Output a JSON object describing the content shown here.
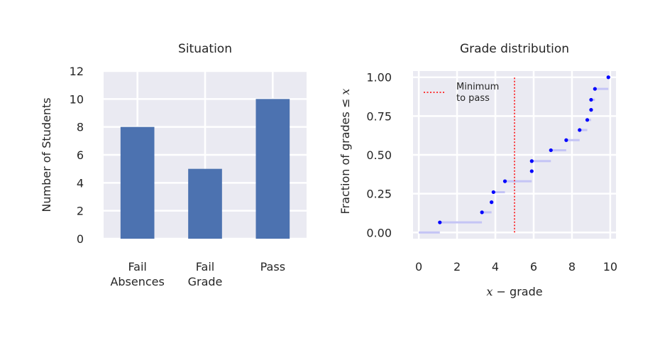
{
  "chart_data": [
    {
      "type": "bar",
      "title": "Situation",
      "ylabel": "Number of Students",
      "xlabel": "",
      "categories": [
        [
          "Fail",
          "Absences"
        ],
        [
          "Fail",
          "Grade"
        ],
        [
          "Pass"
        ]
      ],
      "values": [
        8,
        5,
        10
      ],
      "ylim": [
        0,
        12
      ],
      "yticks": [
        0,
        2,
        4,
        6,
        8,
        10,
        12
      ],
      "grid": true,
      "bar_color": "#4c72b0",
      "background": "#eaeaf2"
    },
    {
      "type": "line",
      "subtype": "step-ecdf",
      "title": "Grade distribution",
      "xlabel_var": "x",
      "xlabel_text": " − grade",
      "ylabel_text": "Fraction of grades ≤ ",
      "ylabel_var": "x",
      "xlim": [
        -0.3,
        10.3
      ],
      "ylim": [
        -0.04,
        1.04
      ],
      "xticks": [
        0,
        2,
        4,
        6,
        8,
        10
      ],
      "yticks": [
        "0.00",
        "0.25",
        "0.50",
        "0.75",
        "1.00"
      ],
      "ytick_values": [
        0,
        0.25,
        0.5,
        0.75,
        1.0
      ],
      "grid": true,
      "background": "#eaeaf2",
      "step_color": "#c4c4f5",
      "point_color": "#0000ff",
      "threshold_color": "#ff0000",
      "points": [
        {
          "x": 1.1,
          "y": 0.065
        },
        {
          "x": 3.3,
          "y": 0.13
        },
        {
          "x": 3.8,
          "y": 0.195
        },
        {
          "x": 3.9,
          "y": 0.26
        },
        {
          "x": 4.5,
          "y": 0.33
        },
        {
          "x": 5.9,
          "y": 0.395
        },
        {
          "x": 5.9,
          "y": 0.46
        },
        {
          "x": 6.9,
          "y": 0.53
        },
        {
          "x": 7.7,
          "y": 0.595
        },
        {
          "x": 8.4,
          "y": 0.66
        },
        {
          "x": 8.8,
          "y": 0.725
        },
        {
          "x": 9.0,
          "y": 0.79
        },
        {
          "x": 9.0,
          "y": 0.855
        },
        {
          "x": 9.2,
          "y": 0.925
        },
        {
          "x": 9.9,
          "y": 1.0
        }
      ],
      "step_start_x": 0.0,
      "step_end_x": 10.0,
      "threshold": {
        "x": 5.0,
        "label_lines": [
          "Minimum",
          "to pass"
        ],
        "y_range": [
          0,
          1.0
        ]
      },
      "legend_position": "top-left"
    }
  ]
}
